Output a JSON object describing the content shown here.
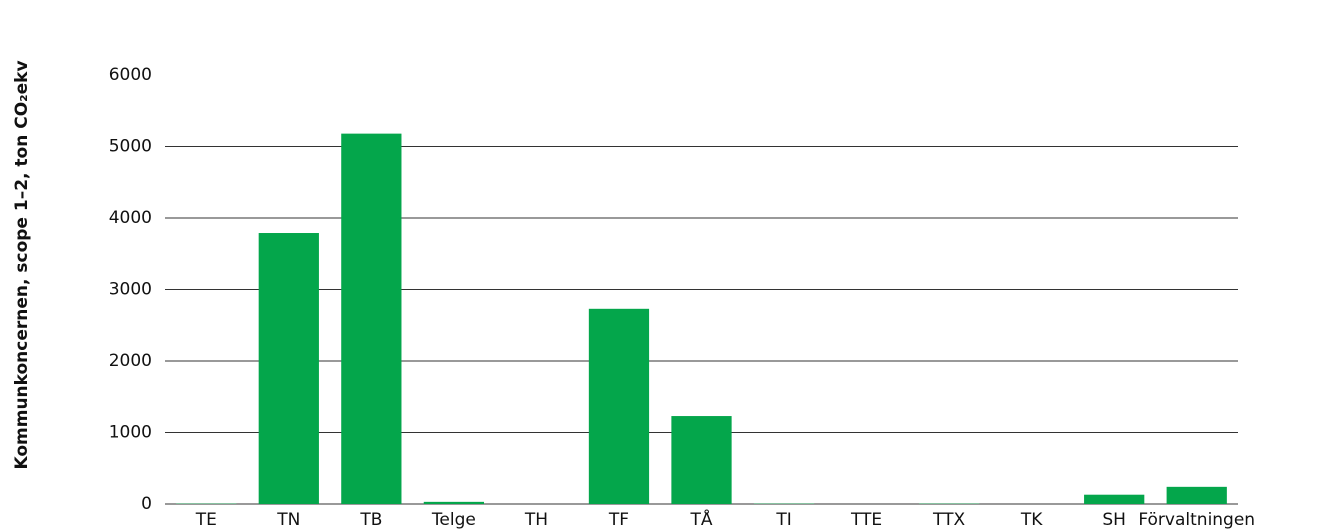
{
  "chart_data": {
    "type": "bar",
    "y_label": "Kommunkoncernen, scope 1–2, ton CO₂ekv",
    "categories": [
      "TE",
      "TN",
      "TB",
      "Telge",
      "TH",
      "TF",
      "TÅ",
      "TI",
      "TTE",
      "TTX",
      "TK",
      "SH",
      "Förvaltningen"
    ],
    "values": [
      5,
      3790,
      5180,
      30,
      0,
      2730,
      1230,
      5,
      0,
      5,
      0,
      130,
      240
    ],
    "color": "#04a64b",
    "ylim": [
      0,
      6000
    ],
    "yticks": [
      0,
      1000,
      2000,
      3000,
      4000,
      5000,
      6000
    ],
    "grid": true
  }
}
